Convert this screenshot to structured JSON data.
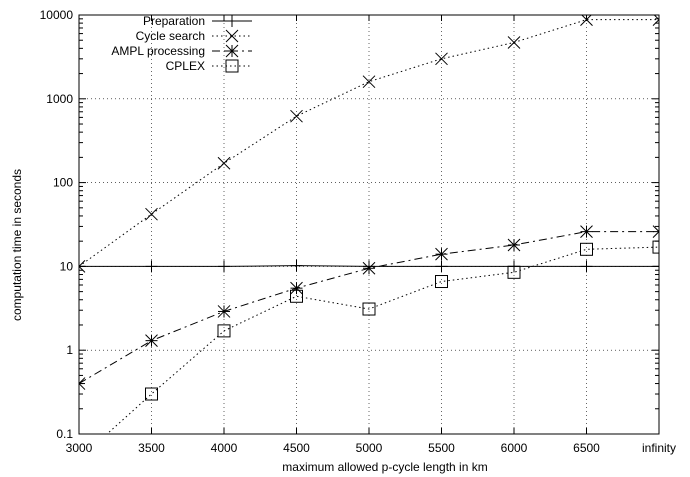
{
  "chart_data": {
    "type": "line",
    "xlabel": "maximum allowed p-cycle length in km",
    "ylabel": "computation time in seconds",
    "categories": [
      "3000",
      "3500",
      "4000",
      "4500",
      "5000",
      "5500",
      "6000",
      "6500",
      "infinity"
    ],
    "y_scale": "log",
    "ylim": [
      0.1,
      10000
    ],
    "yticks": [
      {
        "value": 0.1,
        "label": "0.1"
      },
      {
        "value": 1,
        "label": "1"
      },
      {
        "value": 10,
        "label": "10"
      },
      {
        "value": 100,
        "label": "100"
      },
      {
        "value": 1000,
        "label": "1000"
      },
      {
        "value": 10000,
        "label": "10000"
      }
    ],
    "grid": true,
    "legend_position": "top-left",
    "series": [
      {
        "name": "Preparation",
        "style": "solid",
        "marker": "plus",
        "values": [
          10,
          10,
          10,
          10.2,
          10,
          10,
          10,
          10,
          10
        ]
      },
      {
        "name": "Cycle search",
        "style": "dotted",
        "marker": "cross",
        "values": [
          10,
          42,
          170,
          620,
          1600,
          3000,
          4700,
          8800,
          8800
        ]
      },
      {
        "name": "AMPL processing",
        "style": "dashdot",
        "marker": "star",
        "values": [
          0.4,
          1.3,
          2.9,
          5.5,
          9.5,
          14,
          18,
          26,
          26
        ]
      },
      {
        "name": "CPLEX",
        "style": "dotted",
        "marker": "square",
        "values": [
          0.05,
          0.3,
          1.7,
          4.4,
          3.1,
          6.6,
          8.5,
          16,
          17
        ]
      }
    ]
  }
}
